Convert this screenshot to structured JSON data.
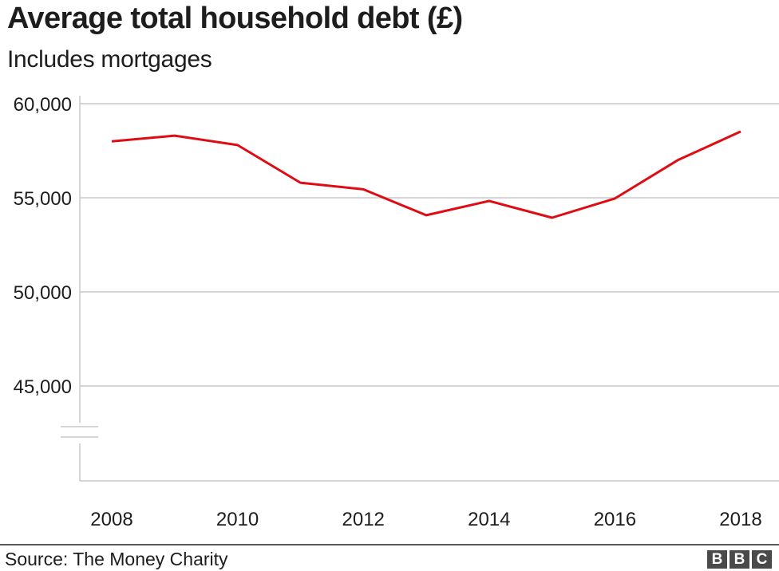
{
  "header": {
    "title": "Average total household debt (£)",
    "subtitle": "Includes mortgages"
  },
  "footer": {
    "source": "Source: The Money Charity",
    "logo_letters": [
      "B",
      "B",
      "C"
    ]
  },
  "colors": {
    "line": "#e00c14",
    "grid": "#c8c8c8",
    "axis": "#c8c8c8",
    "text": "#1d1d1d",
    "logo_bg": "#4a4a4a"
  },
  "chart_data": {
    "type": "line",
    "title": "Average total household debt (£)",
    "subtitle": "Includes mortgages",
    "xlabel": "",
    "ylabel": "",
    "x": [
      2008,
      2009,
      2010,
      2011,
      2012,
      2013,
      2014,
      2015,
      2016,
      2017,
      2018
    ],
    "series": [
      {
        "name": "Average total household debt (£)",
        "values": [
          58000,
          58300,
          57800,
          55800,
          55450,
          54070,
          54830,
          53940,
          54960,
          57000,
          58520
        ]
      }
    ],
    "x_ticks": [
      2008,
      2010,
      2012,
      2014,
      2016,
      2018
    ],
    "y_ticks": [
      45000,
      50000,
      55000,
      60000
    ],
    "y_tick_labels": [
      "45,000",
      "50,000",
      "55,000",
      "60,000"
    ],
    "ylim": [
      41000,
      60000
    ],
    "y_axis_break": true,
    "grid": true,
    "legend": "none",
    "source": "The Money Charity"
  }
}
